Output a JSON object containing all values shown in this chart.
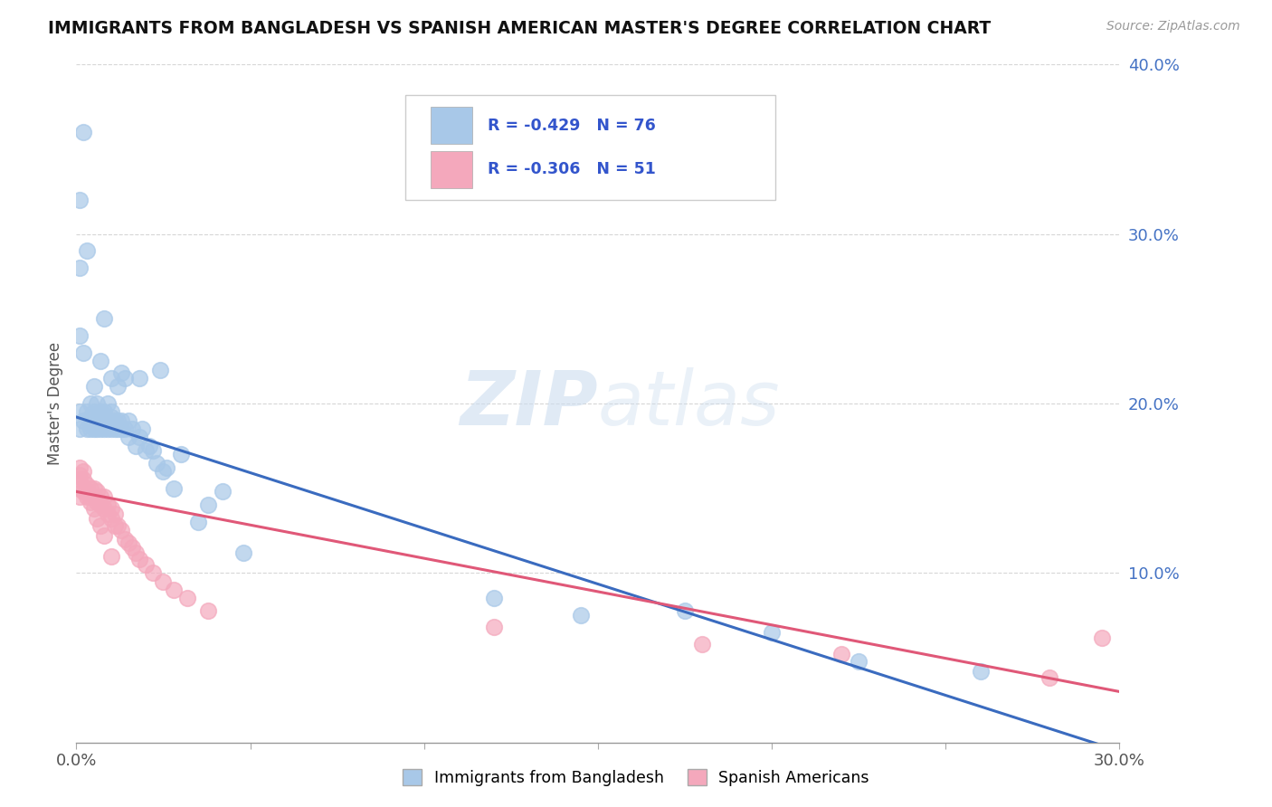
{
  "title": "IMMIGRANTS FROM BANGLADESH VS SPANISH AMERICAN MASTER'S DEGREE CORRELATION CHART",
  "source": "Source: ZipAtlas.com",
  "legend_label1": "Immigrants from Bangladesh",
  "legend_label2": "Spanish Americans",
  "r1": -0.429,
  "n1": 76,
  "r2": -0.306,
  "n2": 51,
  "color1": "#a8c8e8",
  "color2": "#f4a8bc",
  "line_color1": "#3a6bbf",
  "line_color2": "#e05878",
  "watermark_zip": "ZIP",
  "watermark_atlas": "atlas",
  "xlim": [
    0.0,
    0.3
  ],
  "ylim": [
    0.0,
    0.4
  ],
  "yticks": [
    0.1,
    0.2,
    0.3,
    0.4
  ],
  "xtick_labels_show": [
    "0.0%",
    "30.0%"
  ],
  "xtick_label_positions": [
    0.0,
    0.3
  ],
  "blue_scatter_x": [
    0.001,
    0.001,
    0.002,
    0.003,
    0.003,
    0.004,
    0.004,
    0.004,
    0.004,
    0.005,
    0.005,
    0.005,
    0.005,
    0.006,
    0.006,
    0.006,
    0.007,
    0.007,
    0.007,
    0.007,
    0.007,
    0.008,
    0.008,
    0.008,
    0.008,
    0.008,
    0.009,
    0.009,
    0.009,
    0.01,
    0.01,
    0.01,
    0.01,
    0.01,
    0.011,
    0.011,
    0.012,
    0.012,
    0.012,
    0.013,
    0.013,
    0.013,
    0.014,
    0.014,
    0.015,
    0.015,
    0.016,
    0.017,
    0.018,
    0.018,
    0.019,
    0.02,
    0.021,
    0.022,
    0.023,
    0.024,
    0.025,
    0.026,
    0.028,
    0.03,
    0.035,
    0.038,
    0.042,
    0.048,
    0.001,
    0.001,
    0.002,
    0.003,
    0.001,
    0.002,
    0.12,
    0.145,
    0.175,
    0.2,
    0.225,
    0.26
  ],
  "blue_scatter_y": [
    0.195,
    0.185,
    0.19,
    0.185,
    0.195,
    0.185,
    0.188,
    0.192,
    0.2,
    0.185,
    0.19,
    0.195,
    0.21,
    0.185,
    0.19,
    0.2,
    0.185,
    0.188,
    0.192,
    0.195,
    0.225,
    0.185,
    0.188,
    0.192,
    0.195,
    0.25,
    0.185,
    0.19,
    0.2,
    0.185,
    0.188,
    0.192,
    0.195,
    0.215,
    0.185,
    0.19,
    0.185,
    0.19,
    0.21,
    0.185,
    0.19,
    0.218,
    0.185,
    0.215,
    0.18,
    0.19,
    0.185,
    0.175,
    0.18,
    0.215,
    0.185,
    0.172,
    0.175,
    0.172,
    0.165,
    0.22,
    0.16,
    0.162,
    0.15,
    0.17,
    0.13,
    0.14,
    0.148,
    0.112,
    0.28,
    0.32,
    0.36,
    0.29,
    0.24,
    0.23,
    0.085,
    0.075,
    0.078,
    0.065,
    0.048,
    0.042
  ],
  "pink_scatter_x": [
    0.001,
    0.001,
    0.001,
    0.002,
    0.003,
    0.003,
    0.004,
    0.004,
    0.005,
    0.005,
    0.006,
    0.006,
    0.007,
    0.007,
    0.008,
    0.008,
    0.009,
    0.009,
    0.01,
    0.01,
    0.011,
    0.011,
    0.012,
    0.013,
    0.014,
    0.015,
    0.016,
    0.017,
    0.018,
    0.02,
    0.022,
    0.025,
    0.028,
    0.032,
    0.038,
    0.001,
    0.001,
    0.002,
    0.002,
    0.003,
    0.004,
    0.005,
    0.006,
    0.007,
    0.008,
    0.01,
    0.12,
    0.18,
    0.22,
    0.28,
    0.295
  ],
  "pink_scatter_y": [
    0.145,
    0.15,
    0.155,
    0.148,
    0.145,
    0.152,
    0.145,
    0.15,
    0.145,
    0.15,
    0.142,
    0.148,
    0.14,
    0.145,
    0.138,
    0.145,
    0.135,
    0.14,
    0.132,
    0.138,
    0.128,
    0.135,
    0.128,
    0.125,
    0.12,
    0.118,
    0.115,
    0.112,
    0.108,
    0.105,
    0.1,
    0.095,
    0.09,
    0.085,
    0.078,
    0.158,
    0.162,
    0.155,
    0.16,
    0.148,
    0.142,
    0.138,
    0.132,
    0.128,
    0.122,
    0.11,
    0.068,
    0.058,
    0.052,
    0.038,
    0.062
  ],
  "reg_line1_x0": 0.0,
  "reg_line1_y0": 0.192,
  "reg_line1_x1": 0.3,
  "reg_line1_y1": -0.005,
  "reg_line2_x0": 0.0,
  "reg_line2_y0": 0.148,
  "reg_line2_x1": 0.3,
  "reg_line2_y1": 0.03
}
